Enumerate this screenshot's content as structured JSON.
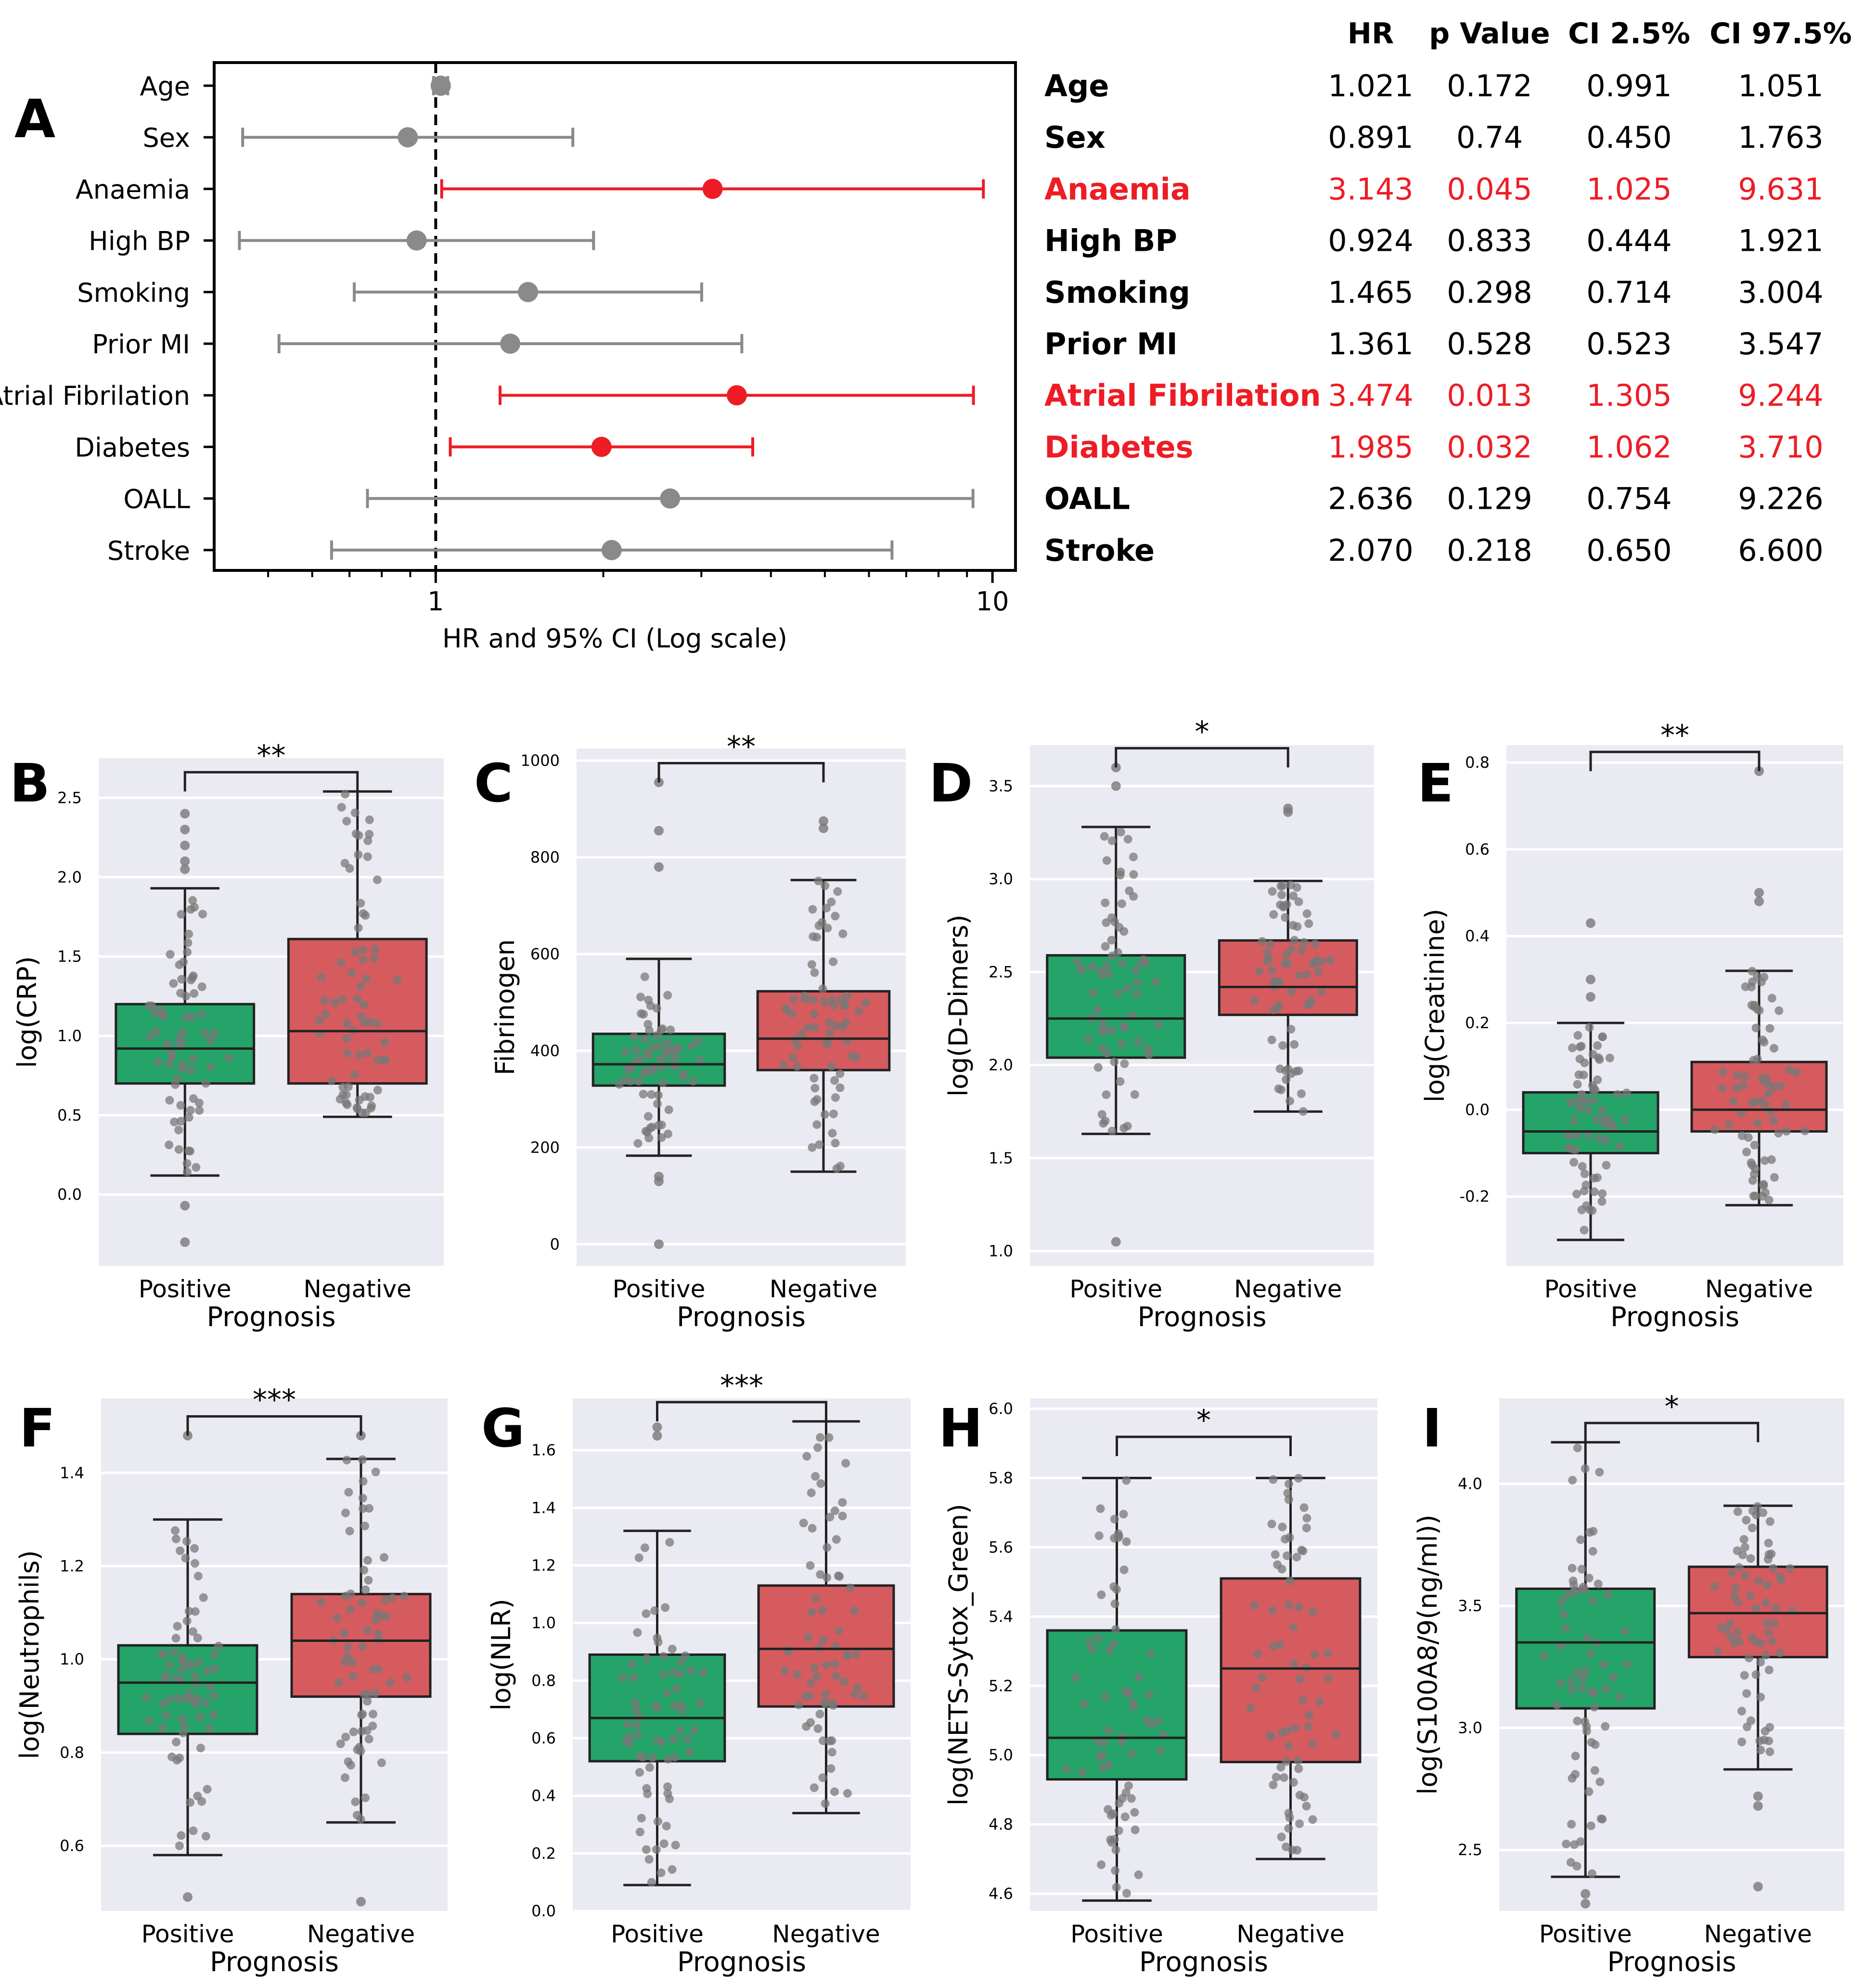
{
  "colors": {
    "red": "#ee1c25",
    "grey": "#8a8a8a",
    "green": "#24a468",
    "rosso": "#d65b5f",
    "panel_bg": "#eaeaf2",
    "dot": "#787878",
    "line": "#222222"
  },
  "chart_data": [
    {
      "panel": "A",
      "type": "forest",
      "xlabel": "HR and 95% CI (Log scale)",
      "xscale": "log",
      "xlim": [
        0.4,
        11
      ],
      "xticks": [
        "1",
        "10"
      ],
      "reference_line": 1,
      "table_headers": [
        "HR",
        "p Value",
        "CI 2.5%",
        "CI 97.5%"
      ],
      "rows": [
        {
          "label": "Age",
          "hr": "1.021",
          "p": "0.172",
          "lo": "0.991",
          "hi": "1.051",
          "sig": false
        },
        {
          "label": "Sex",
          "hr": "0.891",
          "p": "0.74",
          "lo": "0.450",
          "hi": "1.763",
          "sig": false
        },
        {
          "label": "Anaemia",
          "hr": "3.143",
          "p": "0.045",
          "lo": "1.025",
          "hi": "9.631",
          "sig": true
        },
        {
          "label": "High BP",
          "hr": "0.924",
          "p": "0.833",
          "lo": "0.444",
          "hi": "1.921",
          "sig": false
        },
        {
          "label": "Smoking",
          "hr": "1.465",
          "p": "0.298",
          "lo": "0.714",
          "hi": "3.004",
          "sig": false
        },
        {
          "label": "Prior MI",
          "hr": "1.361",
          "p": "0.528",
          "lo": "0.523",
          "hi": "3.547",
          "sig": false
        },
        {
          "label": "Atrial Fibrilation",
          "hr": "3.474",
          "p": "0.013",
          "lo": "1.305",
          "hi": "9.244",
          "sig": true
        },
        {
          "label": "Diabetes",
          "hr": "1.985",
          "p": "0.032",
          "lo": "1.062",
          "hi": "3.710",
          "sig": true
        },
        {
          "label": "OALL",
          "hr": "2.636",
          "p": "0.129",
          "lo": "0.754",
          "hi": "9.226",
          "sig": false
        },
        {
          "label": "Stroke",
          "hr": "2.070",
          "p": "0.218",
          "lo": "0.650",
          "hi": "6.600",
          "sig": false
        }
      ]
    },
    {
      "panel": "B",
      "type": "box",
      "ylabel": "log(CRP)",
      "xlabel": "Prognosis",
      "categories": [
        "Positive",
        "Negative"
      ],
      "ylim": [
        -0.45,
        2.75
      ],
      "yticks": [
        "0.0",
        "0.5",
        "1.0",
        "1.5",
        "2.0",
        "2.5"
      ],
      "significance": "**",
      "groups": [
        {
          "whislo": 0.12,
          "q1": 0.7,
          "med": 0.92,
          "q3": 1.2,
          "whishi": 1.93,
          "fliers": [
            -0.07,
            -0.3,
            2.05,
            2.1,
            2.2,
            2.3,
            2.4
          ]
        },
        {
          "whislo": 0.49,
          "q1": 0.7,
          "med": 1.03,
          "q3": 1.61,
          "whishi": 2.54,
          "fliers": []
        }
      ]
    },
    {
      "panel": "C",
      "type": "box",
      "ylabel": "Fibrinogen",
      "xlabel": "Prognosis",
      "categories": [
        "Positive",
        "Negative"
      ],
      "ylim": [
        -45,
        1025
      ],
      "yticks": [
        "0",
        "200",
        "400",
        "600",
        "800",
        "1000"
      ],
      "significance": "**",
      "groups": [
        {
          "whislo": 183,
          "q1": 328,
          "med": 372,
          "q3": 435,
          "whishi": 590,
          "fliers": [
            0,
            130,
            140,
            780,
            855,
            955
          ]
        },
        {
          "whislo": 150,
          "q1": 360,
          "med": 425,
          "q3": 523,
          "whishi": 753,
          "fliers": [
            860,
            875
          ]
        }
      ]
    },
    {
      "panel": "D",
      "type": "box",
      "ylabel": "log(D-Dimers)",
      "xlabel": "Prognosis",
      "categories": [
        "Positive",
        "Negative"
      ],
      "ylim": [
        0.92,
        3.72
      ],
      "yticks": [
        "1.0",
        "1.5",
        "2.0",
        "2.5",
        "3.0",
        "3.5"
      ],
      "significance": "*",
      "groups": [
        {
          "whislo": 1.63,
          "q1": 2.04,
          "med": 2.25,
          "q3": 2.59,
          "whishi": 3.28,
          "fliers": [
            1.05,
            3.5,
            3.6
          ]
        },
        {
          "whislo": 1.75,
          "q1": 2.27,
          "med": 2.42,
          "q3": 2.67,
          "whishi": 2.99,
          "fliers": [
            3.36,
            3.38
          ]
        }
      ]
    },
    {
      "panel": "E",
      "type": "box",
      "ylabel": "log(Creatinine)",
      "xlabel": "Prognosis",
      "categories": [
        "Positive",
        "Negative"
      ],
      "ylim": [
        -0.36,
        0.84
      ],
      "yticks": [
        "-0.2",
        "0.0",
        "0.2",
        "0.4",
        "0.6",
        "0.8"
      ],
      "significance": "**",
      "groups": [
        {
          "whislo": -0.3,
          "q1": -0.1,
          "med": -0.05,
          "q3": 0.04,
          "whishi": 0.2,
          "fliers": [
            0.26,
            0.3,
            0.43
          ]
        },
        {
          "whislo": -0.22,
          "q1": -0.05,
          "med": 0.0,
          "q3": 0.11,
          "whishi": 0.32,
          "fliers": [
            0.48,
            0.5,
            0.78
          ]
        }
      ]
    },
    {
      "panel": "F",
      "type": "box",
      "ylabel": "log(Neutrophils)",
      "xlabel": "Prognosis",
      "categories": [
        "Positive",
        "Negative"
      ],
      "ylim": [
        0.46,
        1.56
      ],
      "yticks": [
        "0.6",
        "0.8",
        "1.0",
        "1.2",
        "1.4"
      ],
      "significance": "***",
      "groups": [
        {
          "whislo": 0.58,
          "q1": 0.84,
          "med": 0.95,
          "q3": 1.03,
          "whishi": 1.3,
          "fliers": [
            0.49,
            1.48
          ]
        },
        {
          "whislo": 0.65,
          "q1": 0.92,
          "med": 1.04,
          "q3": 1.14,
          "whishi": 1.43,
          "fliers": [
            0.48,
            1.48
          ]
        }
      ]
    },
    {
      "panel": "G",
      "type": "box",
      "ylabel": "log(NLR)",
      "xlabel": "Prognosis",
      "categories": [
        "Positive",
        "Negative"
      ],
      "ylim": [
        0.0,
        1.78
      ],
      "yticks": [
        "0.0",
        "0.2",
        "0.4",
        "0.6",
        "0.8",
        "1.0",
        "1.2",
        "1.4",
        "1.6"
      ],
      "significance": "***",
      "groups": [
        {
          "whislo": 0.09,
          "q1": 0.52,
          "med": 0.67,
          "q3": 0.89,
          "whishi": 1.32,
          "fliers": [
            1.65,
            1.68
          ]
        },
        {
          "whislo": 0.34,
          "q1": 0.71,
          "med": 0.91,
          "q3": 1.13,
          "whishi": 1.7,
          "fliers": []
        }
      ]
    },
    {
      "panel": "H",
      "type": "box",
      "ylabel": "log(NETS-Sytox_Green)",
      "xlabel": "Prognosis",
      "categories": [
        "Positive",
        "Negative"
      ],
      "ylim": [
        4.55,
        6.03
      ],
      "yticks": [
        "4.6",
        "4.8",
        "5.0",
        "5.2",
        "5.4",
        "5.6",
        "5.8",
        "6.0"
      ],
      "significance": "*",
      "groups": [
        {
          "whislo": 4.58,
          "q1": 4.93,
          "med": 5.05,
          "q3": 5.36,
          "whishi": 5.8,
          "fliers": []
        },
        {
          "whislo": 4.7,
          "q1": 4.98,
          "med": 5.25,
          "q3": 5.51,
          "whishi": 5.8,
          "fliers": []
        }
      ]
    },
    {
      "panel": "I",
      "type": "box",
      "ylabel": "log(S100A8/9(ng/ml))",
      "xlabel": "Prognosis",
      "categories": [
        "Positive",
        "Negative"
      ],
      "ylim": [
        2.25,
        4.35
      ],
      "yticks": [
        "2.5",
        "3.0",
        "3.5",
        "4.0"
      ],
      "significance": "*",
      "groups": [
        {
          "whislo": 2.39,
          "q1": 3.08,
          "med": 3.35,
          "q3": 3.57,
          "whishi": 4.17,
          "fliers": [
            2.28,
            2.32
          ]
        },
        {
          "whislo": 2.83,
          "q1": 3.29,
          "med": 3.47,
          "q3": 3.66,
          "whishi": 3.91,
          "fliers": [
            2.35,
            2.68,
            2.72
          ]
        }
      ]
    }
  ]
}
